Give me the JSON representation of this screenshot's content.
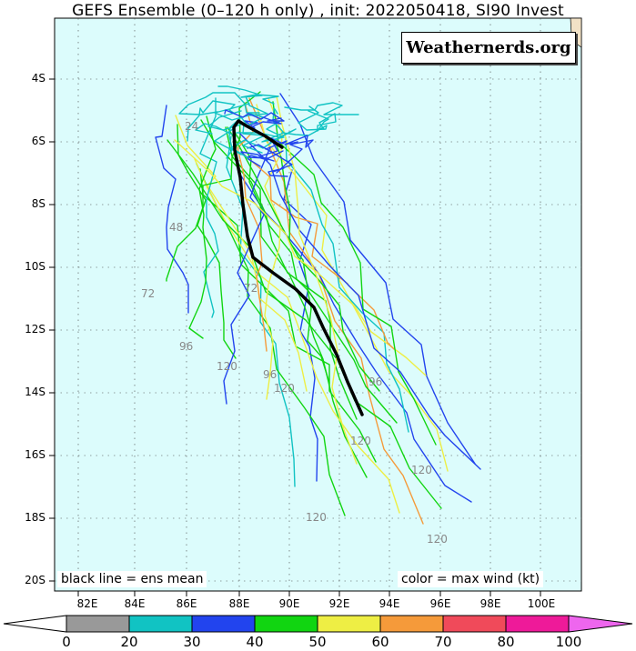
{
  "title": "GEFS Ensemble (0–120 h only) , init: 2022050418, SI90 Invest",
  "brand": "Weathernerds.org",
  "note_left": "black line = ens mean",
  "note_right": "color = max wind (kt)",
  "lat_labels": [
    "4S",
    "6S",
    "8S",
    "10S",
    "12S",
    "14S",
    "16S",
    "18S",
    "20S"
  ],
  "lon_labels": [
    "82E",
    "84E",
    "86E",
    "88E",
    "90E",
    "92E",
    "94E",
    "96E",
    "98E",
    "100E"
  ],
  "lead_time_labels": [
    "24",
    "48",
    "72",
    "96",
    "120"
  ],
  "colorbar": {
    "ticks": [
      "0",
      "20",
      "30",
      "40",
      "50",
      "60",
      "70",
      "80",
      "100"
    ],
    "colors": [
      "#999999",
      "#11c3c3",
      "#2244ee",
      "#11d511",
      "#eeee44",
      "#f59a3a",
      "#f04a5a",
      "#ee1a99",
      "#ee66ee"
    ]
  },
  "colors": {
    "ocean": "#dcfcfc",
    "land": "#f2e2c6",
    "mean": "#000000"
  }
}
